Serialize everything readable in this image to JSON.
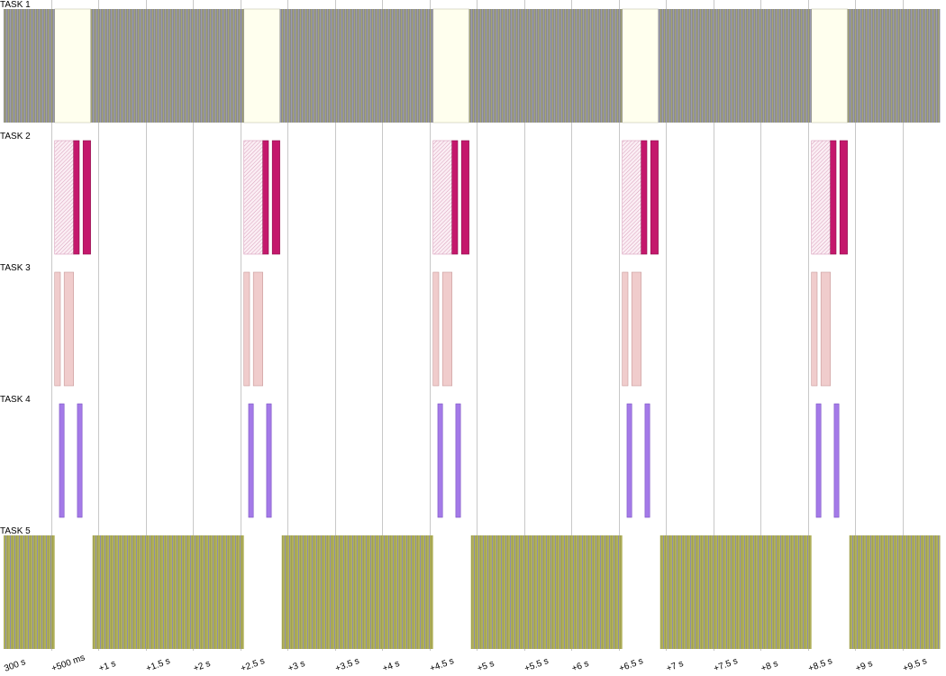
{
  "chart_data": {
    "type": "timeline",
    "title": "",
    "x_unit": "s",
    "x_range": [
      0,
      9.95
    ],
    "colors": {
      "task1_fill": "#8c8c8c",
      "task1_stripe": "#a3a35a",
      "task1_idle": "#ffffee",
      "task2_solid": "#c4186c",
      "task2_hatch": "#c4186c",
      "task3_fill": "#f0cccc",
      "task3_stroke": "#c79a9a",
      "task4_fill": "#a47ae8",
      "task4_stroke": "#7a52c4",
      "task5_fill": "#aaaa55",
      "task5_stripe": "#9090a8",
      "grid": "#c8c8c8"
    },
    "tasks": [
      {
        "name": "TASK 1",
        "style": "dense-gray",
        "segments": [
          [
            0,
            0.27
          ],
          [
            0.46,
            1.27
          ],
          [
            1.46,
            2.27
          ],
          [
            2.46,
            3.27
          ],
          [
            3.46,
            4.27
          ],
          [
            4.46,
            4.95
          ]
        ],
        "idle": [
          [
            0.27,
            0.46
          ],
          [
            1.27,
            1.46
          ],
          [
            2.27,
            2.46
          ],
          [
            3.27,
            3.46
          ],
          [
            4.27,
            4.46
          ]
        ]
      },
      {
        "name": "TASK 2",
        "style": "burst-magenta",
        "segments": [
          {
            "start": 0.27,
            "end": 0.37,
            "kind": "hatched"
          },
          {
            "start": 0.37,
            "end": 0.4,
            "kind": "solid"
          },
          {
            "start": 0.42,
            "end": 0.46,
            "kind": "solid"
          },
          {
            "start": 1.27,
            "end": 1.37,
            "kind": "hatched"
          },
          {
            "start": 1.37,
            "end": 1.4,
            "kind": "solid"
          },
          {
            "start": 1.42,
            "end": 1.46,
            "kind": "solid"
          },
          {
            "start": 2.27,
            "end": 2.37,
            "kind": "hatched"
          },
          {
            "start": 2.37,
            "end": 2.4,
            "kind": "solid"
          },
          {
            "start": 2.42,
            "end": 2.46,
            "kind": "solid"
          },
          {
            "start": 3.27,
            "end": 3.37,
            "kind": "hatched"
          },
          {
            "start": 3.37,
            "end": 3.4,
            "kind": "solid"
          },
          {
            "start": 3.42,
            "end": 3.46,
            "kind": "solid"
          },
          {
            "start": 4.27,
            "end": 4.37,
            "kind": "hatched"
          },
          {
            "start": 4.37,
            "end": 4.4,
            "kind": "solid"
          },
          {
            "start": 4.42,
            "end": 4.46,
            "kind": "solid"
          }
        ]
      },
      {
        "name": "TASK 3",
        "style": "pink",
        "segments": [
          [
            0.27,
            0.3
          ],
          [
            0.32,
            0.37
          ],
          [
            1.27,
            1.3
          ],
          [
            1.32,
            1.37
          ],
          [
            2.27,
            2.3
          ],
          [
            2.32,
            2.37
          ],
          [
            3.27,
            3.3
          ],
          [
            3.32,
            3.37
          ],
          [
            4.27,
            4.3
          ],
          [
            4.32,
            4.37
          ]
        ]
      },
      {
        "name": "TASK 4",
        "style": "purple",
        "segments": [
          [
            0.295,
            0.32
          ],
          [
            0.39,
            0.415
          ],
          [
            1.295,
            1.32
          ],
          [
            1.39,
            1.415
          ],
          [
            2.295,
            2.32
          ],
          [
            2.39,
            2.415
          ],
          [
            3.295,
            3.32
          ],
          [
            3.39,
            3.415
          ],
          [
            4.295,
            4.32
          ],
          [
            4.39,
            4.415
          ]
        ]
      },
      {
        "name": "TASK 5",
        "style": "dense-olive",
        "segments": [
          [
            0,
            0.27
          ],
          [
            0.47,
            1.27
          ],
          [
            1.47,
            2.27
          ],
          [
            2.47,
            3.27
          ],
          [
            3.47,
            4.27
          ],
          [
            4.47,
            4.95
          ]
        ]
      }
    ],
    "ticks": [
      {
        "t": 0.0,
        "label": "300 s"
      },
      {
        "t": 0.25,
        "label": "+500 ms"
      },
      {
        "t": 0.5,
        "label": "+1 s"
      },
      {
        "t": 0.75,
        "label": "+1.5 s"
      },
      {
        "t": 1.0,
        "label": "+2 s"
      },
      {
        "t": 1.25,
        "label": "+2.5 s"
      },
      {
        "t": 1.5,
        "label": "+3 s"
      },
      {
        "t": 1.75,
        "label": "+3.5 s"
      },
      {
        "t": 2.0,
        "label": "+4 s"
      },
      {
        "t": 2.25,
        "label": "+4.5 s"
      },
      {
        "t": 2.5,
        "label": "+5 s"
      },
      {
        "t": 2.75,
        "label": "+5.5 s"
      },
      {
        "t": 3.0,
        "label": "+6 s"
      },
      {
        "t": 3.25,
        "label": "+6.5 s"
      },
      {
        "t": 3.5,
        "label": "+7 s"
      },
      {
        "t": 3.75,
        "label": "+7.5 s"
      },
      {
        "t": 4.0,
        "label": "+8 s"
      },
      {
        "t": 4.25,
        "label": "+8.5 s"
      },
      {
        "t": 4.5,
        "label": "+9 s"
      },
      {
        "t": 4.75,
        "label": "+9.5 s"
      }
    ]
  }
}
